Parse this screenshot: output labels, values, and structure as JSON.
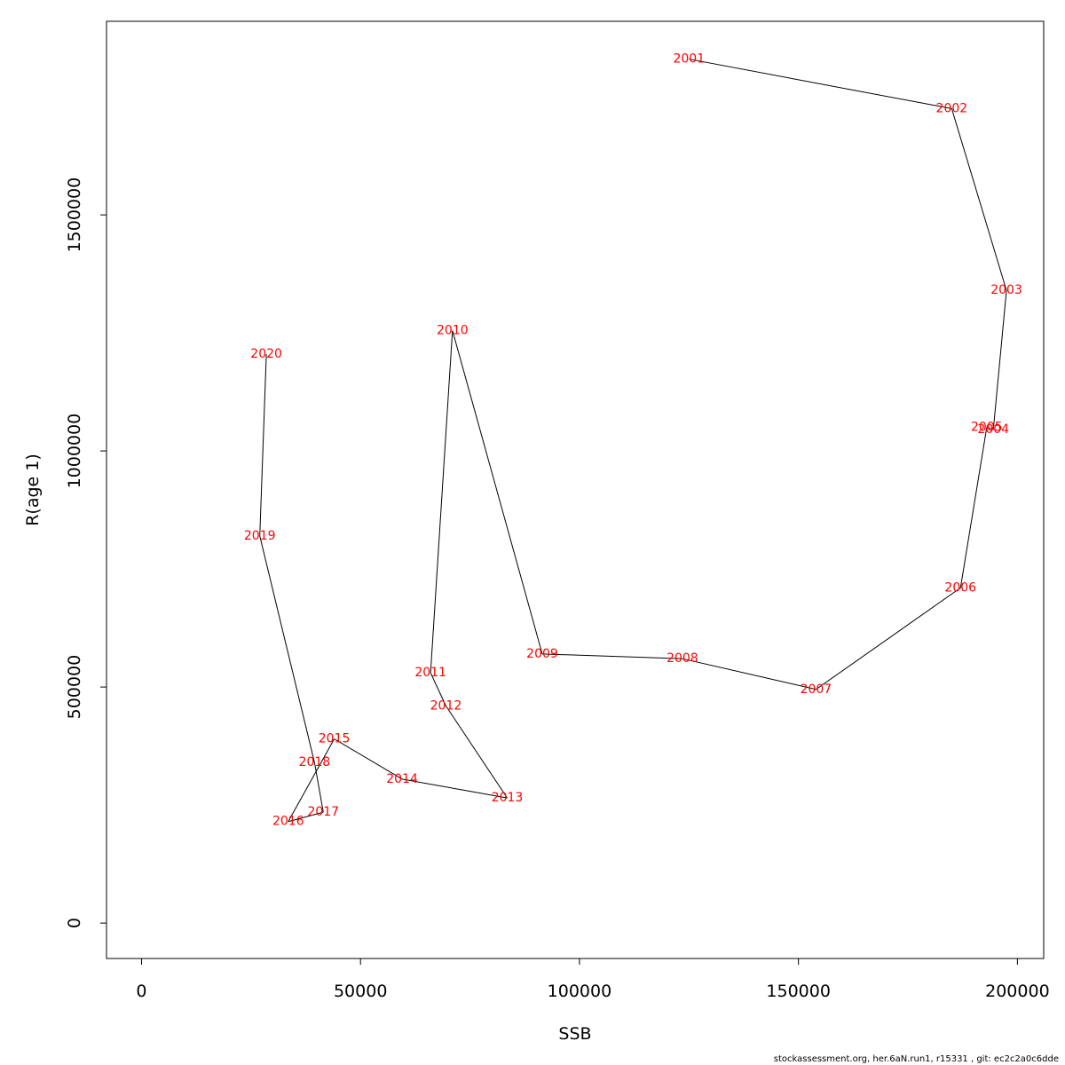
{
  "chart_data": {
    "type": "line",
    "xlabel": "SSB",
    "ylabel": "R(age 1)",
    "xlim": [
      -8000,
      206000
    ],
    "ylim": [
      -75000,
      1910000
    ],
    "x_ticks": [
      0,
      50000,
      100000,
      150000,
      200000
    ],
    "y_ticks": [
      0,
      500000,
      1000000,
      1500000
    ],
    "grid": false,
    "line_color": "#000000",
    "label_color": "#ff0000",
    "points": [
      {
        "year": "2001",
        "x": 125000,
        "y": 1830000
      },
      {
        "year": "2002",
        "x": 185000,
        "y": 1725000
      },
      {
        "year": "2003",
        "x": 197500,
        "y": 1340000
      },
      {
        "year": "2004",
        "x": 194500,
        "y": 1045000
      },
      {
        "year": "2005",
        "x": 193000,
        "y": 1050000
      },
      {
        "year": "2006",
        "x": 187000,
        "y": 710000
      },
      {
        "year": "2007",
        "x": 154000,
        "y": 495000
      },
      {
        "year": "2008",
        "x": 123500,
        "y": 560000
      },
      {
        "year": "2009",
        "x": 91500,
        "y": 570000
      },
      {
        "year": "2010",
        "x": 71000,
        "y": 1255000
      },
      {
        "year": "2011",
        "x": 66000,
        "y": 530000
      },
      {
        "year": "2012",
        "x": 69500,
        "y": 460000
      },
      {
        "year": "2013",
        "x": 83500,
        "y": 265000
      },
      {
        "year": "2014",
        "x": 59500,
        "y": 305000
      },
      {
        "year": "2015",
        "x": 44000,
        "y": 390000
      },
      {
        "year": "2016",
        "x": 33500,
        "y": 215000
      },
      {
        "year": "2017",
        "x": 41500,
        "y": 235000
      },
      {
        "year": "2018",
        "x": 39500,
        "y": 340000
      },
      {
        "year": "2019",
        "x": 27000,
        "y": 820000
      },
      {
        "year": "2020",
        "x": 28500,
        "y": 1205000
      }
    ]
  },
  "footer": "stockassessment.org, her.6aN.run1, r15331 , git: ec2c2a0c6dde"
}
